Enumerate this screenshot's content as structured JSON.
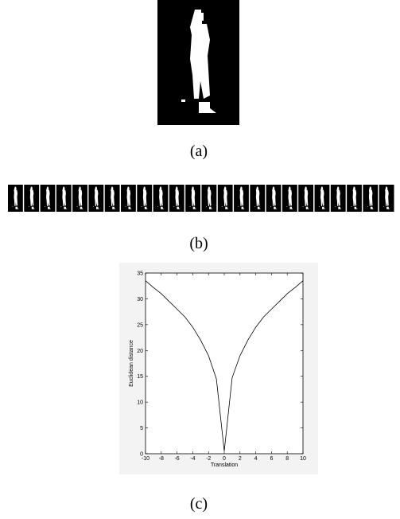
{
  "captions": [
    "(a)",
    "(b)",
    "(c)"
  ],
  "chart_data": {
    "type": "line",
    "xlabel": "Translation",
    "ylabel": "Euclidean distance",
    "x": [
      -10,
      -9,
      -8,
      -7,
      -6,
      -5,
      -4,
      -3,
      -2,
      -1,
      0,
      1,
      2,
      3,
      4,
      5,
      6,
      7,
      8,
      9,
      10
    ],
    "series": [
      {
        "color": "#000000",
        "values": [
          33.5,
          32.2,
          31,
          29.5,
          28,
          26.5,
          24.5,
          22,
          19,
          14.5,
          0.5,
          14.7,
          19,
          22,
          24.5,
          26.5,
          28,
          29.5,
          31,
          32.2,
          33.5
        ]
      }
    ],
    "xlim": [
      -10,
      10
    ],
    "ylim": [
      0,
      35
    ],
    "xticks": [
      -10,
      -8,
      -6,
      -4,
      -2,
      0,
      2,
      4,
      6,
      8,
      10
    ],
    "yticks": [
      0,
      5,
      10,
      15,
      20,
      25,
      30,
      35
    ]
  }
}
